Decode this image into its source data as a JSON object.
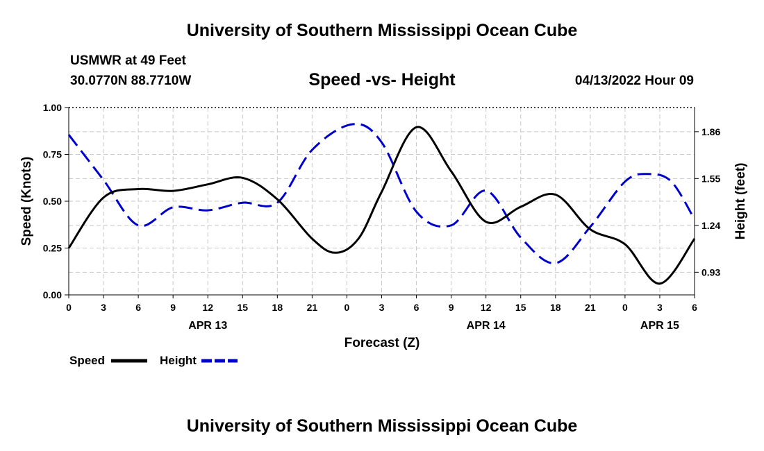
{
  "header": {
    "title": "University of Southern Mississippi Ocean Cube",
    "station": "USMWR at 49 Feet",
    "coords": "30.0770N  88.7710W",
    "date": "04/13/2022 Hour 09",
    "footer_title": "University of Southern Mississippi Ocean Cube"
  },
  "chart_data": {
    "type": "line",
    "title": "Speed -vs- Height",
    "xlabel": "Forecast (Z)",
    "ylabel": "Speed (Knots)",
    "y2label": "Height (feet)",
    "xlim": [
      0,
      54
    ],
    "ylim": [
      0,
      1.0
    ],
    "y2lim": [
      0.78,
      2.02
    ],
    "x_ticks": [
      {
        "x": 0,
        "label": "0"
      },
      {
        "x": 3,
        "label": "3"
      },
      {
        "x": 6,
        "label": "6"
      },
      {
        "x": 9,
        "label": "9"
      },
      {
        "x": 12,
        "label": "12"
      },
      {
        "x": 15,
        "label": "15"
      },
      {
        "x": 18,
        "label": "18"
      },
      {
        "x": 21,
        "label": "21"
      },
      {
        "x": 24,
        "label": "0"
      },
      {
        "x": 27,
        "label": "3"
      },
      {
        "x": 30,
        "label": "6"
      },
      {
        "x": 33,
        "label": "9"
      },
      {
        "x": 36,
        "label": "12"
      },
      {
        "x": 39,
        "label": "15"
      },
      {
        "x": 42,
        "label": "18"
      },
      {
        "x": 45,
        "label": "21"
      },
      {
        "x": 48,
        "label": "0"
      },
      {
        "x": 51,
        "label": "3"
      },
      {
        "x": 54,
        "label": "6"
      }
    ],
    "date_labels": [
      {
        "x": 12,
        "label": "APR 13"
      },
      {
        "x": 36,
        "label": "APR 14"
      },
      {
        "x": 51,
        "label": "APR 15"
      }
    ],
    "y_ticks": [
      "0.00",
      "0.25",
      "0.50",
      "0.75",
      "1.00"
    ],
    "y2_ticks": [
      {
        "value": 0.93,
        "label": "0.93"
      },
      {
        "value": 1.24,
        "label": "1.24"
      },
      {
        "value": 1.55,
        "label": "1.55"
      },
      {
        "value": 1.86,
        "label": "1.86"
      }
    ],
    "series": [
      {
        "name": "Speed",
        "axis": "left",
        "color": "#000000",
        "dash": "solid",
        "x": [
          0,
          3,
          6,
          9,
          12,
          15,
          18,
          21,
          23,
          25,
          27,
          30,
          33,
          36,
          39,
          42,
          45,
          48,
          51,
          54
        ],
        "values": [
          0.25,
          0.52,
          0.565,
          0.555,
          0.59,
          0.625,
          0.51,
          0.3,
          0.225,
          0.3,
          0.55,
          0.895,
          0.66,
          0.39,
          0.47,
          0.535,
          0.35,
          0.27,
          0.06,
          0.3
        ]
      },
      {
        "name": "Height",
        "axis": "right",
        "color": "#0000cc",
        "dash": "dashed",
        "x": [
          0,
          3,
          6,
          9,
          12,
          15,
          18,
          21,
          24.5,
          27,
          30,
          33,
          36,
          39,
          42,
          45,
          48,
          50,
          52,
          54
        ],
        "values": [
          1.84,
          1.54,
          1.24,
          1.36,
          1.34,
          1.39,
          1.39,
          1.74,
          1.91,
          1.79,
          1.33,
          1.24,
          1.47,
          1.16,
          0.99,
          1.23,
          1.53,
          1.58,
          1.53,
          1.28
        ]
      }
    ],
    "legend": [
      {
        "name": "Speed",
        "color": "#000000",
        "dash": "solid"
      },
      {
        "name": "Height",
        "color": "#0000cc",
        "dash": "dashed"
      }
    ],
    "grid": true
  }
}
